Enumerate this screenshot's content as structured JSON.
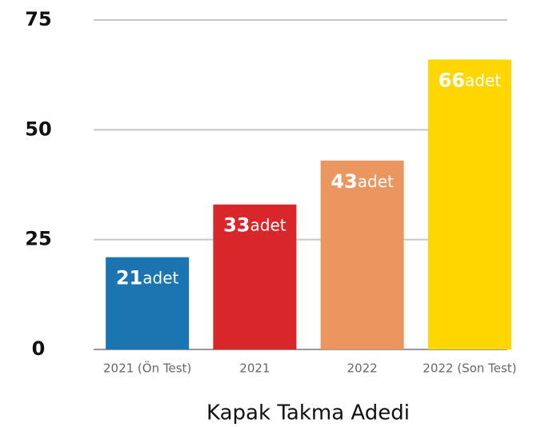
{
  "chart_data": {
    "type": "bar",
    "title": "Kapak Takma Adedi",
    "categories": [
      "2021 (Ön Test)",
      "2021",
      "2022",
      "2022 (Son Test)"
    ],
    "values": [
      21,
      33,
      43,
      66
    ],
    "value_labels": [
      "21adet",
      "33adet",
      "43adet",
      "66adet"
    ],
    "colors": [
      "#1a75b0",
      "#d9262a",
      "#eb965e",
      "#fed700"
    ],
    "ylim": [
      0,
      75
    ],
    "yticks": [
      0,
      25,
      50,
      75
    ],
    "grid": true
  }
}
